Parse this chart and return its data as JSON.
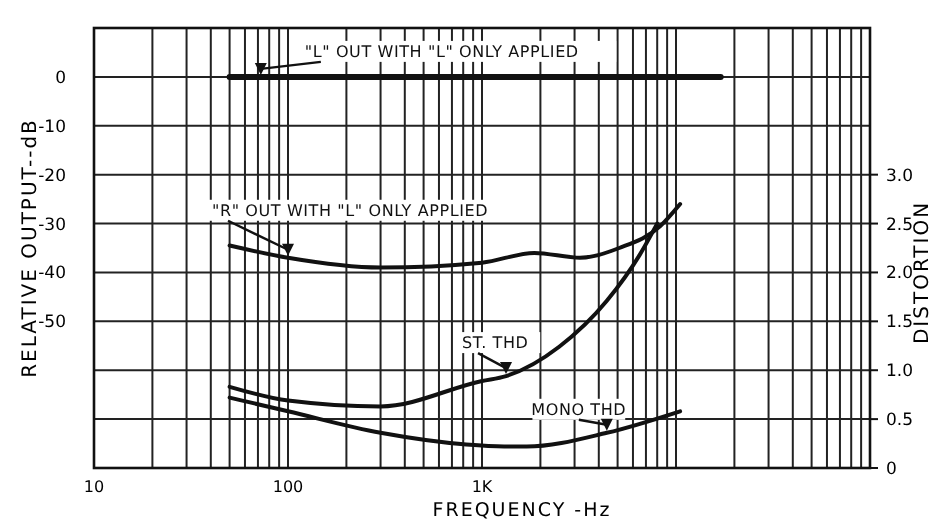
{
  "chart_data": {
    "type": "line",
    "xlabel": "FREQUENCY -Hz",
    "ylabel": "RELATIVE OUTPUT--dB",
    "y2label": "DISTORTION",
    "log": "x",
    "grid": true,
    "marker": "none",
    "line_style": "solid",
    "xlim": [
      10,
      100000
    ],
    "xticks": [
      {
        "value": 10,
        "label": "10"
      },
      {
        "value": 20,
        "label": null
      },
      {
        "value": 30,
        "label": null
      },
      {
        "value": 40,
        "label": null
      },
      {
        "value": 50,
        "label": null
      },
      {
        "value": 60,
        "label": null
      },
      {
        "value": 70,
        "label": null
      },
      {
        "value": 80,
        "label": null
      },
      {
        "value": 90,
        "label": null
      },
      {
        "value": 100,
        "label": "100"
      },
      {
        "value": 200,
        "label": null
      },
      {
        "value": 300,
        "label": null
      },
      {
        "value": 400,
        "label": null
      },
      {
        "value": 500,
        "label": null
      },
      {
        "value": 600,
        "label": null
      },
      {
        "value": 700,
        "label": null
      },
      {
        "value": 800,
        "label": null
      },
      {
        "value": 900,
        "label": null
      },
      {
        "value": 1000,
        "label": "1K"
      },
      {
        "value": 2000,
        "label": null
      },
      {
        "value": 3000,
        "label": null
      },
      {
        "value": 4000,
        "label": null
      },
      {
        "value": 5000,
        "label": null
      },
      {
        "value": 6000,
        "label": null
      },
      {
        "value": 7000,
        "label": null
      },
      {
        "value": 8000,
        "label": null
      },
      {
        "value": 9000,
        "label": null
      },
      {
        "value": 10000,
        "label": null
      },
      {
        "value": 20000,
        "label": null
      },
      {
        "value": 30000,
        "label": null
      },
      {
        "value": 40000,
        "label": null
      },
      {
        "value": 50000,
        "label": null
      },
      {
        "value": 60000,
        "label": null
      },
      {
        "value": 70000,
        "label": null
      },
      {
        "value": 80000,
        "label": null
      },
      {
        "value": 90000,
        "label": null
      }
    ],
    "ylim": [
      -80,
      10
    ],
    "yticks": [
      {
        "value": 10,
        "label": null
      },
      0,
      -10,
      -20,
      -30,
      -40,
      -50,
      {
        "value": -60,
        "label": null
      },
      {
        "value": -70,
        "label": null
      },
      {
        "value": -80,
        "label": null
      }
    ],
    "y2lim": [
      0,
      4.5
    ],
    "y2ticks": [
      {
        "value": 0,
        "label": "0"
      },
      {
        "value": 0.5,
        "label": "0.5"
      },
      {
        "value": 1,
        "label": "1.0"
      },
      {
        "value": 1.5,
        "label": "1.5"
      },
      {
        "value": 2,
        "label": "2.0"
      },
      {
        "value": 2.5,
        "label": "2.5"
      },
      {
        "value": 3,
        "label": "3.0"
      }
    ],
    "series": [
      {
        "name": "\"L\" OUT WITH \"L\" ONLY APPLIED",
        "color": "#111111",
        "x": [
          50,
          17000
        ],
        "values": [
          0,
          0
        ]
      },
      {
        "name": "\"R\" OUT WITH \"L\" ONLY APPLIED",
        "color": "#111111",
        "x": [
          50,
          100,
          300,
          1000,
          1860,
          3200,
          5100,
          8300,
          10500
        ],
        "values": [
          -34.5,
          -37,
          -39,
          -38,
          -36,
          -37,
          -35,
          -30.5,
          -26
        ]
      },
      {
        "name": "ST. THD",
        "color": "#111111",
        "axis": "y2",
        "x": [
          50,
          100,
          300,
          1000,
          1330,
          2500,
          4400,
          6500,
          8000
        ],
        "values": [
          0.83,
          0.69,
          0.63,
          0.89,
          0.94,
          1.24,
          1.71,
          2.18,
          2.5
        ]
      },
      {
        "name": "MONO THD",
        "color": "#111111",
        "axis": "y2",
        "x": [
          50,
          100,
          300,
          830,
          1300,
          1700,
          4400,
          10500
        ],
        "values": [
          0.72,
          0.58,
          0.36,
          0.24,
          0.22,
          0.22,
          0.36,
          0.58
        ]
      }
    ]
  }
}
